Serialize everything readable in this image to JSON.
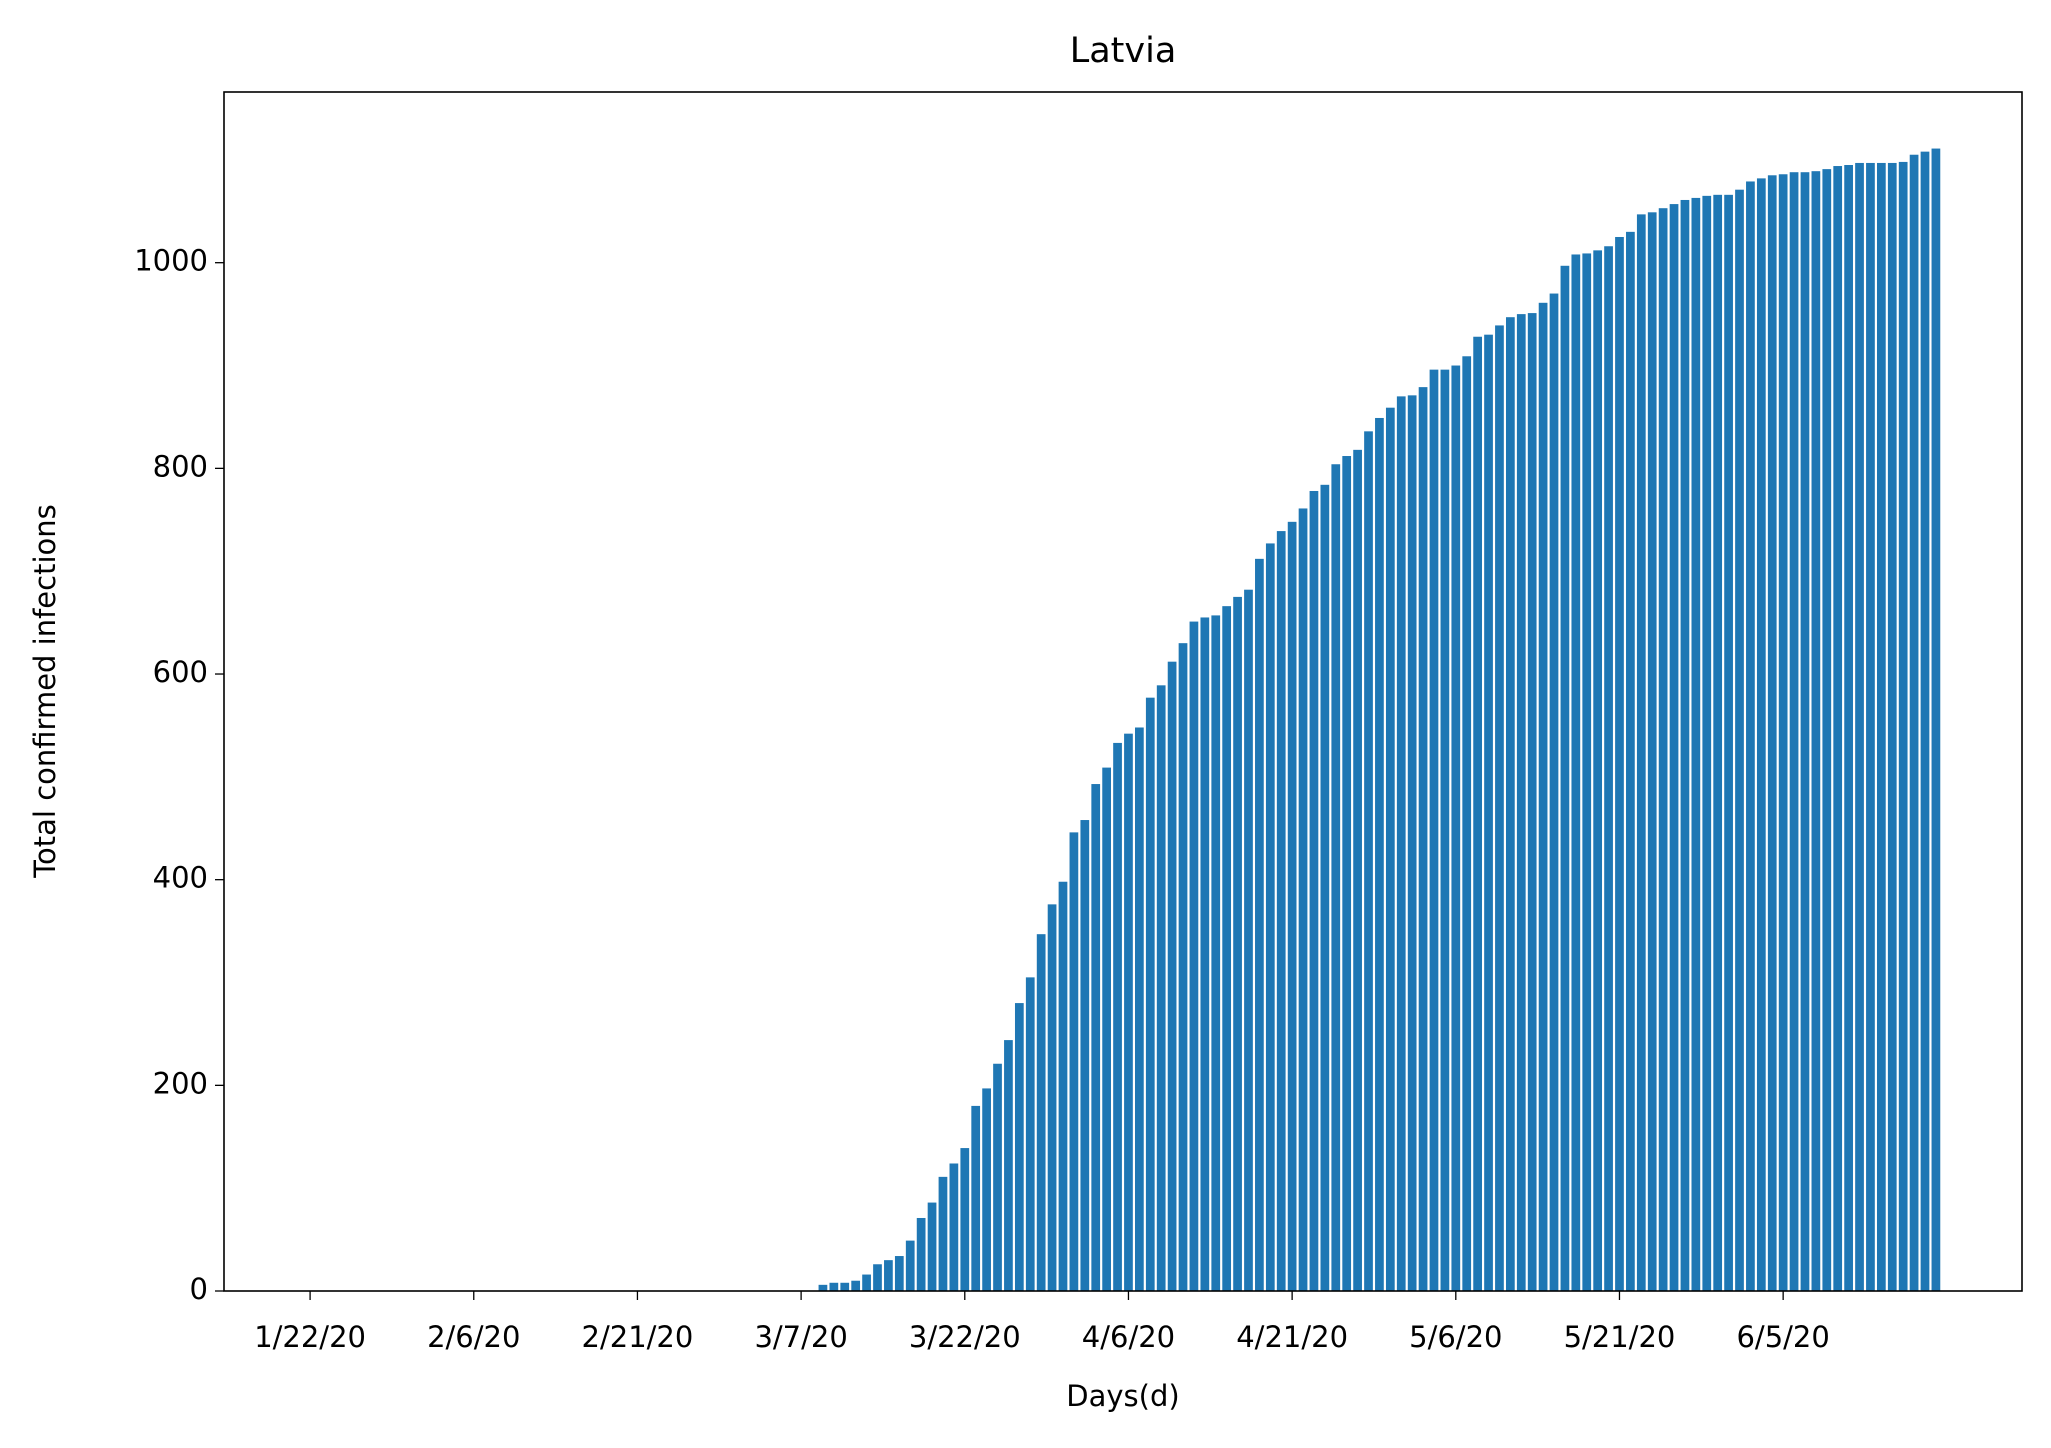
{
  "chart_data": {
    "type": "bar",
    "title": "Latvia",
    "x_label": "Days(d)",
    "y_label": "Total confirmed infections",
    "color": "#1f77b4",
    "categories": [
      "1/22/20",
      null,
      null,
      null,
      null,
      null,
      null,
      null,
      null,
      null,
      null,
      null,
      null,
      null,
      null,
      "2/6/20",
      null,
      null,
      null,
      null,
      null,
      null,
      null,
      null,
      null,
      null,
      null,
      null,
      null,
      null,
      "2/21/20",
      null,
      null,
      null,
      null,
      null,
      null,
      null,
      null,
      null,
      null,
      null,
      null,
      null,
      null,
      "3/7/20",
      null,
      null,
      null,
      null,
      null,
      null,
      null,
      null,
      null,
      null,
      null,
      null,
      null,
      null,
      "3/22/20",
      null,
      null,
      null,
      null,
      null,
      null,
      null,
      null,
      null,
      null,
      null,
      null,
      null,
      null,
      "4/6/20",
      null,
      null,
      null,
      null,
      null,
      null,
      null,
      null,
      null,
      null,
      null,
      null,
      null,
      null,
      "4/21/20",
      null,
      null,
      null,
      null,
      null,
      null,
      null,
      null,
      null,
      null,
      null,
      null,
      null,
      null,
      "5/6/20",
      null,
      null,
      null,
      null,
      null,
      null,
      null,
      null,
      null,
      null,
      null,
      null,
      null,
      null,
      "5/21/20",
      null,
      null,
      null,
      null,
      null,
      null,
      null,
      null,
      null,
      null,
      null,
      null,
      null,
      null,
      "6/5/20",
      null,
      null,
      null,
      null,
      null,
      null,
      null,
      null,
      null,
      null,
      null,
      null,
      null,
      null
    ],
    "values": [
      0,
      0,
      0,
      0,
      0,
      0,
      0,
      0,
      0,
      0,
      0,
      0,
      0,
      0,
      0,
      0,
      0,
      0,
      0,
      0,
      0,
      0,
      0,
      0,
      0,
      0,
      0,
      0,
      0,
      0,
      0,
      0,
      0,
      0,
      0,
      0,
      0,
      0,
      0,
      0,
      0,
      0,
      0,
      0,
      0,
      0,
      0,
      6,
      8,
      8,
      10,
      16,
      26,
      30,
      34,
      49,
      71,
      86,
      111,
      124,
      139,
      180,
      197,
      221,
      244,
      280,
      305,
      347,
      376,
      398,
      446,
      458,
      493,
      509,
      533,
      542,
      548,
      577,
      589,
      612,
      630,
      651,
      655,
      657,
      666,
      675,
      682,
      712,
      727,
      739,
      748,
      761,
      778,
      784,
      804,
      812,
      818,
      836,
      849,
      859,
      870,
      871,
      879,
      896,
      896,
      900,
      909,
      928,
      930,
      939,
      947,
      950,
      951,
      961,
      970,
      997,
      1008,
      1009,
      1012,
      1016,
      1025,
      1030,
      1047,
      1049,
      1053,
      1057,
      1061,
      1063,
      1065,
      1066,
      1066,
      1071,
      1079,
      1082,
      1085,
      1086,
      1088,
      1088,
      1089,
      1091,
      1094,
      1095,
      1097,
      1097,
      1097,
      1097,
      1098,
      1105,
      1108,
      1111
    ],
    "ylim": [
      0,
      1166
    ],
    "yticks": [
      0,
      200,
      400,
      600,
      800,
      1000
    ],
    "grid": false
  }
}
